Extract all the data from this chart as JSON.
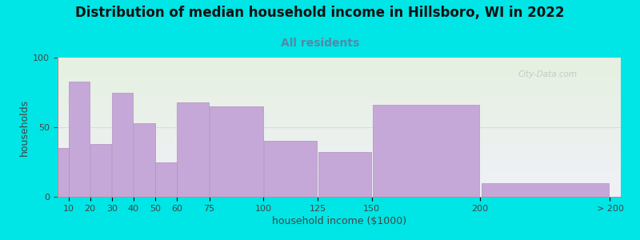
{
  "bin_labels": [
    "10",
    "20",
    "30",
    "40",
    "50",
    "60",
    "75",
    "100",
    "125",
    "150",
    "200",
    "> 200"
  ],
  "bin_lefts": [
    5,
    10,
    20,
    30,
    40,
    50,
    60,
    75,
    100,
    125,
    150,
    200
  ],
  "bin_widths": [
    10,
    10,
    10,
    10,
    10,
    10,
    15,
    25,
    25,
    25,
    50,
    60
  ],
  "values": [
    35,
    83,
    38,
    75,
    53,
    25,
    68,
    65,
    40,
    32,
    66,
    10
  ],
  "bar_color": "#c5a8d8",
  "bar_edge_color": "#b090c0",
  "title": "Distribution of median household income in Hillsboro, WI in 2022",
  "subtitle": "All residents",
  "xlabel": "household income ($1000)",
  "ylabel": "households",
  "ylim": [
    0,
    100
  ],
  "yticks": [
    0,
    50,
    100
  ],
  "xtick_positions": [
    10,
    20,
    30,
    40,
    50,
    60,
    75,
    100,
    125,
    150,
    200,
    260
  ],
  "xtick_labels": [
    "10",
    "20",
    "30",
    "40",
    "50",
    "60",
    "75",
    "100",
    "125",
    "150",
    "200",
    "> 200"
  ],
  "xlim": [
    5,
    265
  ],
  "background_color": "#00e5e5",
  "plot_bg_top": "#e5f0e0",
  "plot_bg_bottom": "#f0f0f8",
  "title_fontsize": 12,
  "subtitle_fontsize": 10,
  "axis_label_fontsize": 9,
  "tick_fontsize": 8,
  "watermark": "City-Data.com"
}
